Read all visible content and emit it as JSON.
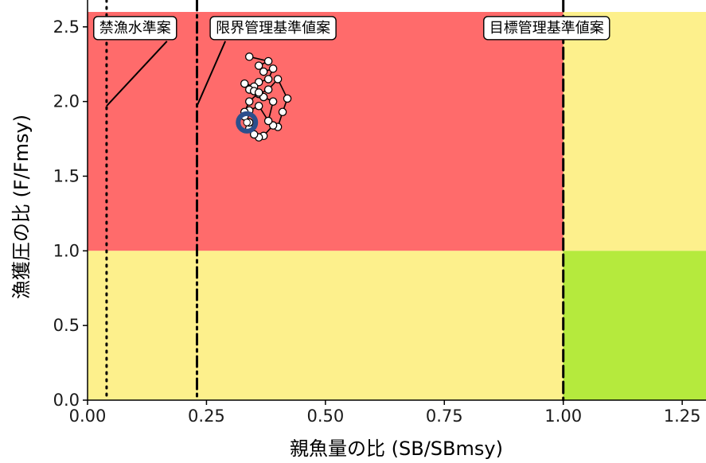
{
  "chart_data": {
    "type": "scatter",
    "title": "",
    "xlabel": "親魚量の比 (SB/SBmsy)",
    "ylabel": "漁獲圧の比 (F/Fmsy)",
    "xlim": [
      0.0,
      1.3
    ],
    "ylim": [
      0.0,
      2.6
    ],
    "x_ticks": [
      0.0,
      0.25,
      0.5,
      0.75,
      1.0,
      1.25
    ],
    "x_tick_labels": [
      "0.00",
      "0.25",
      "0.50",
      "0.75",
      "1.00",
      "1.25"
    ],
    "y_ticks": [
      0.0,
      0.5,
      1.0,
      1.5,
      2.0,
      2.5
    ],
    "y_tick_labels": [
      "0.0",
      "0.5",
      "1.0",
      "1.5",
      "2.0",
      "2.5"
    ],
    "grid": false,
    "background_zones": [
      {
        "name": "red",
        "x": [
          0.0,
          1.0
        ],
        "y": [
          1.0,
          2.6
        ],
        "color": "#ff6b6b"
      },
      {
        "name": "yellow-upper-right",
        "x": [
          1.0,
          1.3
        ],
        "y": [
          1.0,
          2.6
        ],
        "color": "#fdf08c"
      },
      {
        "name": "yellow-lower-left",
        "x": [
          0.0,
          1.0
        ],
        "y": [
          0.0,
          1.0
        ],
        "color": "#fdf08c"
      },
      {
        "name": "green",
        "x": [
          1.0,
          1.3
        ],
        "y": [
          0.0,
          1.0
        ],
        "color": "#b5ea3d"
      }
    ],
    "reference_lines": [
      {
        "label": "禁漁水準案",
        "x": 0.04,
        "style": "dotted"
      },
      {
        "label": "限界管理基準値案",
        "x": 0.23,
        "style": "dashdot"
      },
      {
        "label": "目標管理基準値案",
        "x": 1.0,
        "style": "dashed"
      }
    ],
    "annotations": [
      {
        "text": "禁漁水準案",
        "label_x": 0.1,
        "label_y": 2.5,
        "line_to": [
          0.04,
          1.97
        ]
      },
      {
        "text": "限界管理基準値案",
        "label_x": 0.39,
        "label_y": 2.5,
        "line_to": [
          0.23,
          1.97
        ]
      },
      {
        "text": "目標管理基準値案",
        "label_x": 0.965,
        "label_y": 2.5
      }
    ],
    "series": [
      {
        "x": [
          0.34,
          0.38,
          0.36,
          0.37,
          0.39,
          0.38,
          0.36,
          0.35,
          0.33,
          0.34,
          0.35,
          0.36,
          0.38,
          0.4,
          0.42,
          0.41,
          0.4,
          0.39,
          0.37,
          0.36,
          0.35,
          0.34,
          0.33,
          0.34,
          0.36,
          0.38,
          0.39,
          0.37,
          0.36,
          0.34,
          0.33,
          0.34
        ],
        "y": [
          2.3,
          2.27,
          2.24,
          2.2,
          2.22,
          2.15,
          2.13,
          2.1,
          2.12,
          2.08,
          2.07,
          2.05,
          2.08,
          2.15,
          2.02,
          1.93,
          1.83,
          1.84,
          1.77,
          1.76,
          1.78,
          1.82,
          1.9,
          1.94,
          1.97,
          1.87,
          2.0,
          2.03,
          2.06,
          2.0,
          1.93,
          1.86
        ],
        "color": "#ffffff",
        "line_color": "#000000"
      }
    ],
    "highlight_point": {
      "x": 0.335,
      "y": 1.86,
      "color": "#2b4f8c"
    }
  }
}
